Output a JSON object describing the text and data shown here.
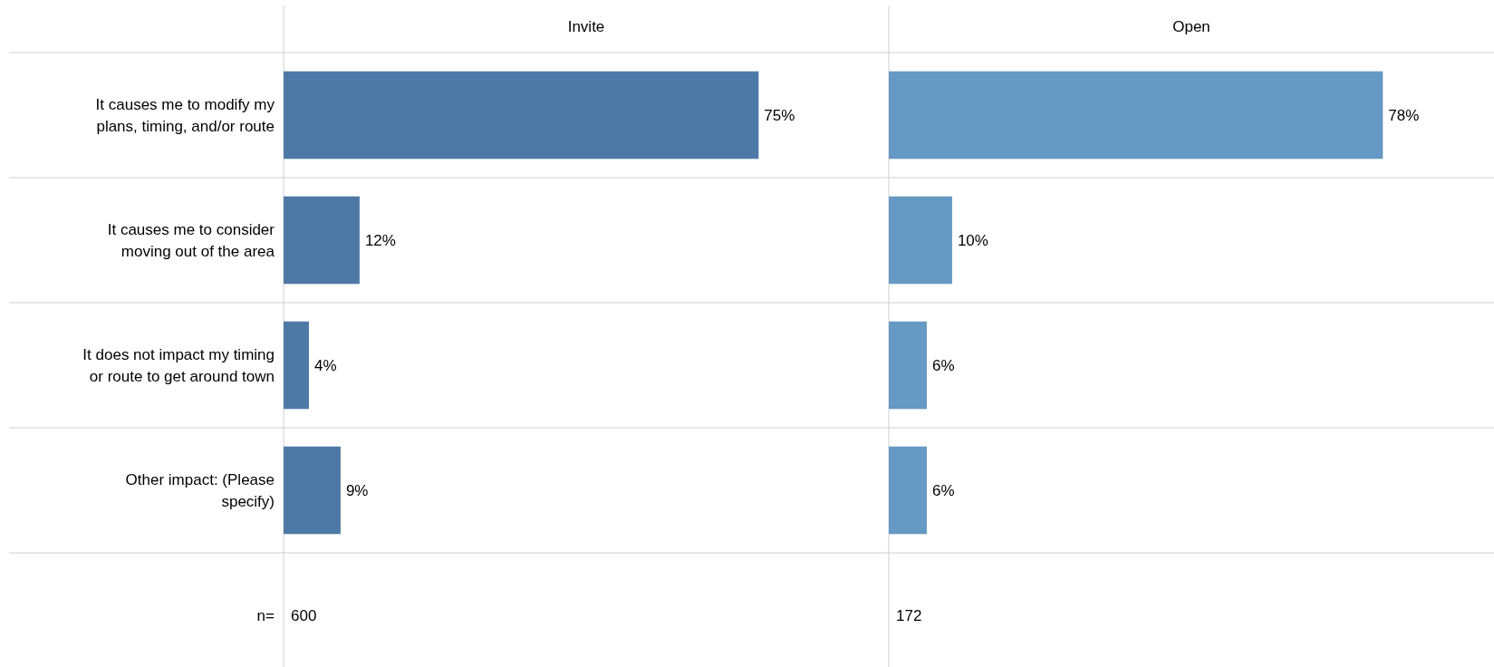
{
  "chart_data": [
    {
      "type": "bar",
      "orientation": "horizontal",
      "title": "Invite",
      "categories": [
        "It causes me to modify my plans, timing, and/or route",
        "It causes me to consider moving out of the area",
        "It does not impact my timing or route to get around town",
        "Other impact: (Please specify)"
      ],
      "values": [
        75,
        12,
        4,
        9
      ],
      "value_labels": [
        "75%",
        "12%",
        "4%",
        "9%"
      ],
      "color": "#4e79a7",
      "annotations": [
        "n=",
        "600"
      ]
    },
    {
      "type": "bar",
      "orientation": "horizontal",
      "title": "Open",
      "categories": [
        null,
        null,
        null,
        null
      ],
      "values": [
        78,
        10,
        6,
        6
      ],
      "value_labels": [
        "78%",
        "10%",
        "6%",
        "6%"
      ],
      "color": "#6699c4",
      "annotations": [
        "172"
      ]
    }
  ]
}
